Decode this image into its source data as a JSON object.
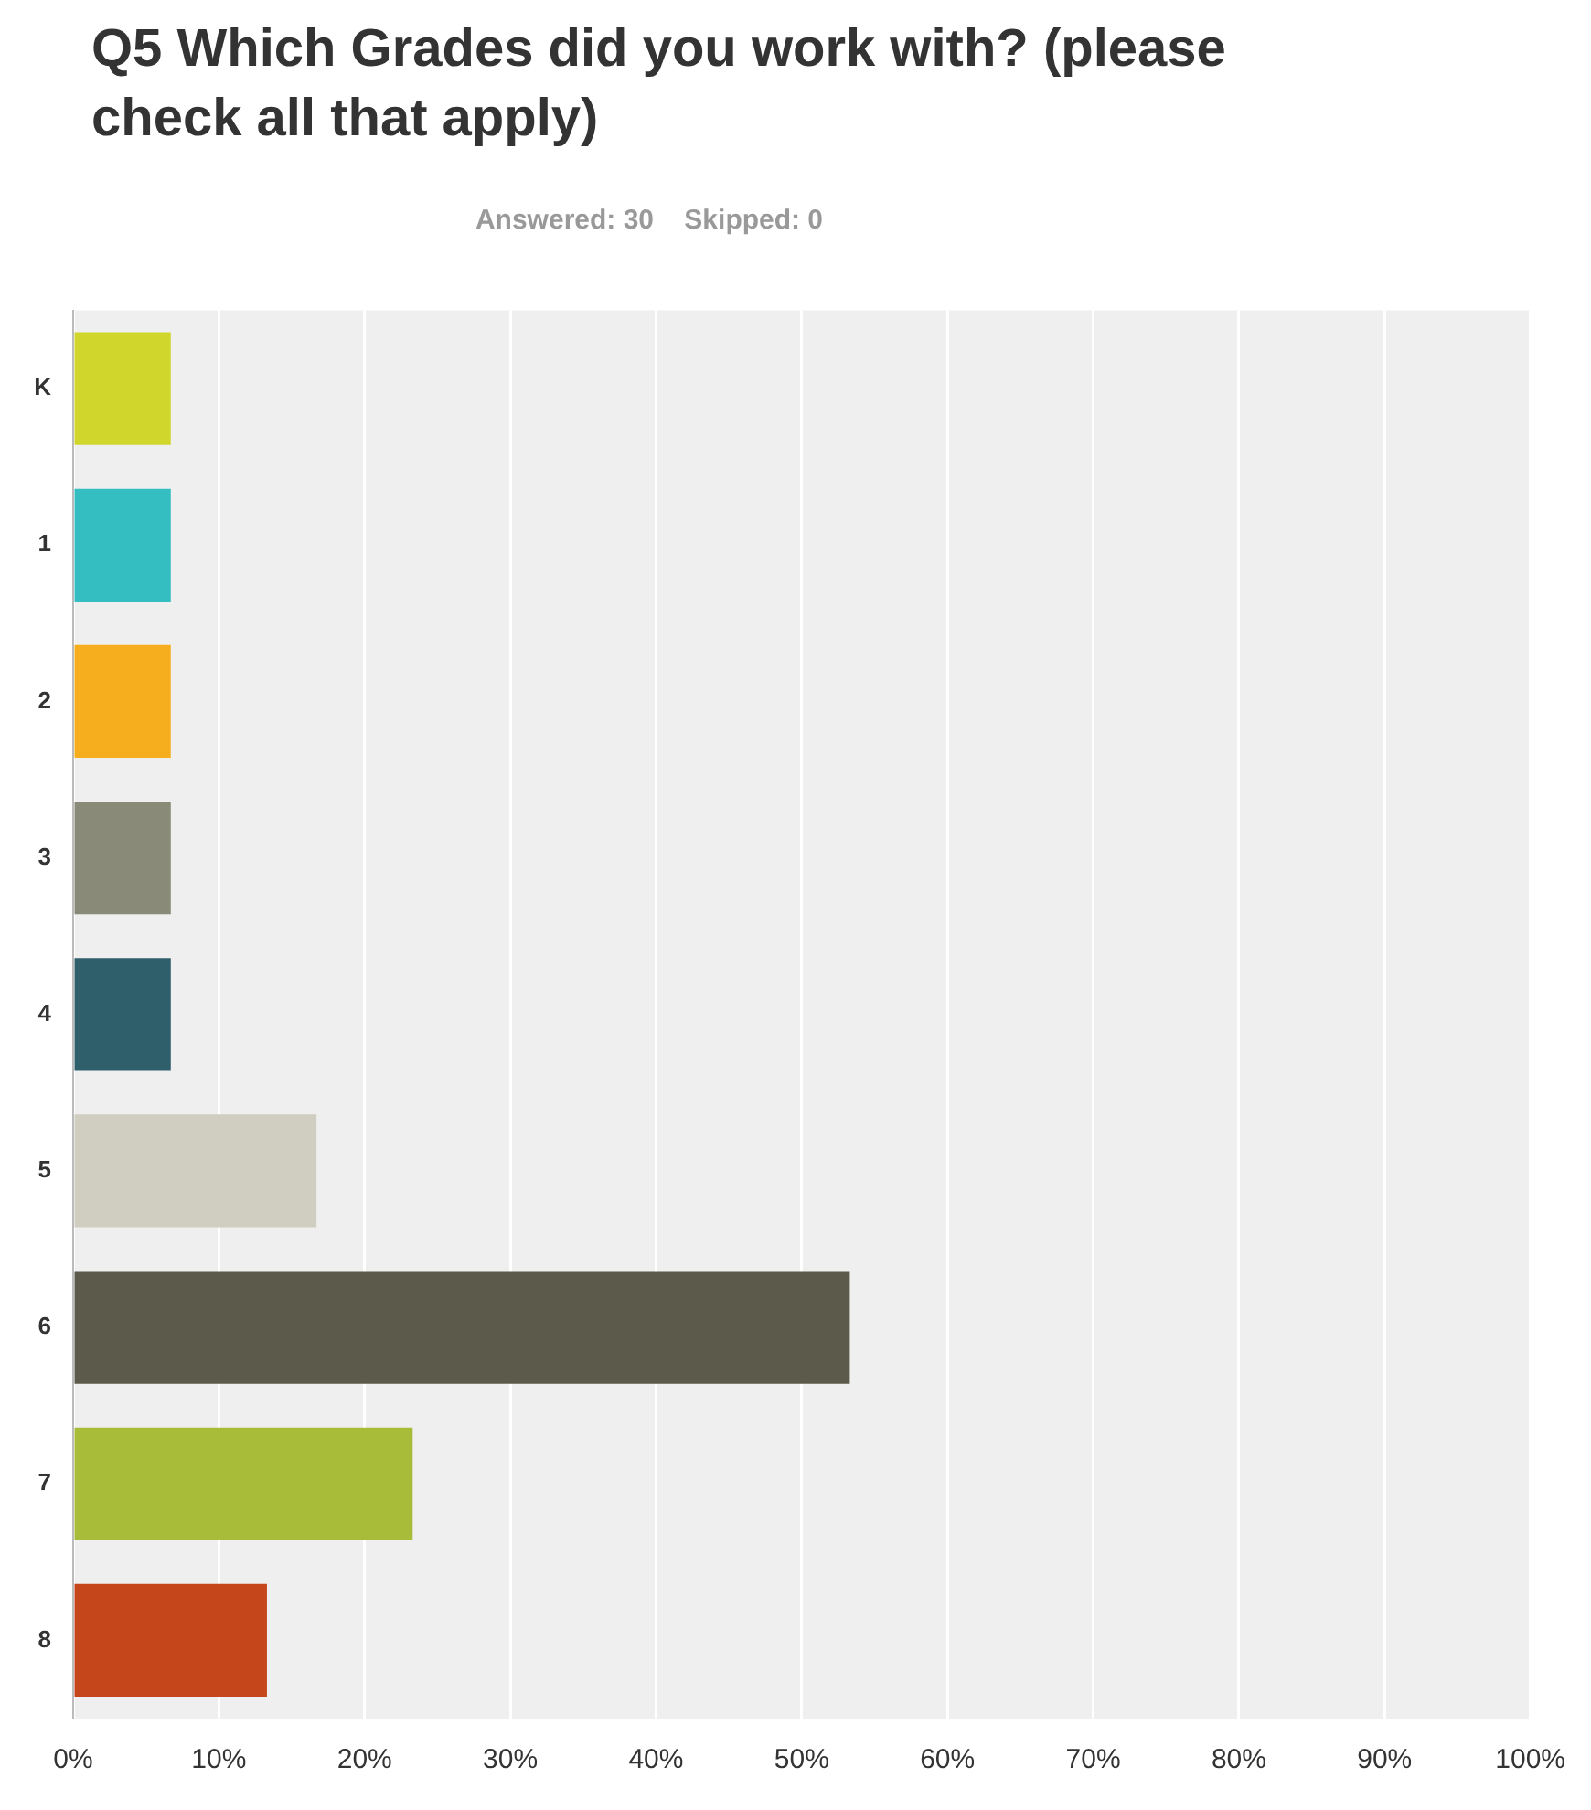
{
  "chart_data": {
    "type": "bar",
    "orientation": "horizontal",
    "title": "Q5 Which Grades did you work with? (please check all that apply)",
    "subtitle": "Answered: 30    Skipped: 0",
    "categories": [
      "K",
      "1",
      "2",
      "3",
      "4",
      "5",
      "6",
      "7",
      "8"
    ],
    "values": [
      6.7,
      6.7,
      6.7,
      6.7,
      6.7,
      16.7,
      53.3,
      23.3,
      13.3
    ],
    "colors": [
      "#d0d62b",
      "#35bec1",
      "#f6ae1f",
      "#8a8a78",
      "#2e5f6b",
      "#d0cec0",
      "#5c5a4b",
      "#a8bc3a",
      "#c6461c"
    ],
    "xlim": [
      0,
      100
    ],
    "xticks": [
      {
        "value": 0,
        "label": "0%"
      },
      {
        "value": 10,
        "label": "10%"
      },
      {
        "value": 20,
        "label": "20%"
      },
      {
        "value": 30,
        "label": "30%"
      },
      {
        "value": 40,
        "label": "40%"
      },
      {
        "value": 50,
        "label": "50%"
      },
      {
        "value": 60,
        "label": "60%"
      },
      {
        "value": 70,
        "label": "70%"
      },
      {
        "value": 80,
        "label": "80%"
      },
      {
        "value": 90,
        "label": "90%"
      },
      {
        "value": 100,
        "label": "100%"
      }
    ],
    "grid": "x",
    "legend": false
  }
}
